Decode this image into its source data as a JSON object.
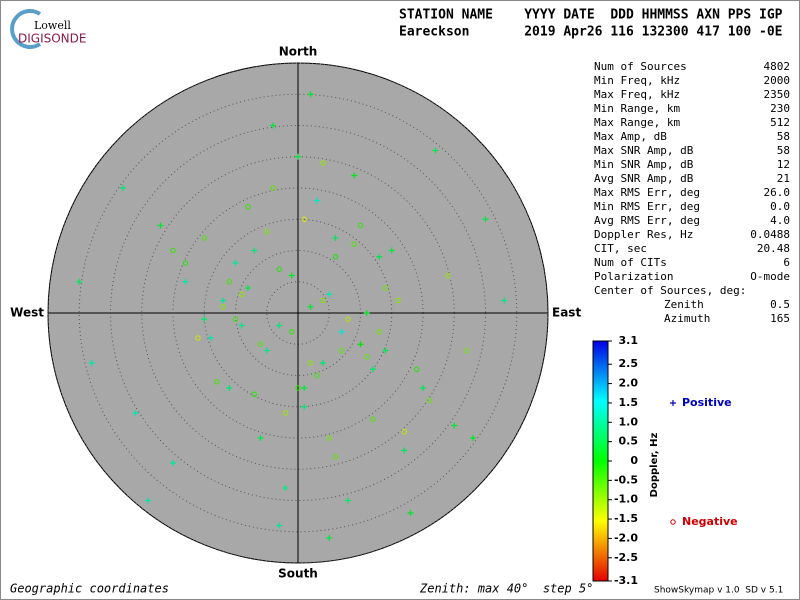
{
  "logo": {
    "top": "Lowell",
    "bottom": "DIGISONDE"
  },
  "header": {
    "line1": "STATION NAME    YYYY DATE  DDD HHMMSS AXN PPS IGP",
    "line2": "Eareckson       2019 Apr26 116 132300 417 100 -0E"
  },
  "stats": {
    "rows": [
      [
        "Num of Sources",
        "4802"
      ],
      [
        "Min Freq, kHz",
        "2000"
      ],
      [
        "Max Freq, kHz",
        "2350"
      ],
      [
        "Min Range, km",
        "230"
      ],
      [
        "Max Range, km",
        "512"
      ],
      [
        "Max Amp, dB",
        "58"
      ],
      [
        "Max SNR Amp, dB",
        "58"
      ],
      [
        "Min SNR Amp, dB",
        "12"
      ],
      [
        "Avg SNR Amp, dB",
        "21"
      ],
      [
        "Max RMS Err, deg",
        "26.0"
      ],
      [
        "Min RMS Err, deg",
        "0.0"
      ],
      [
        "Avg RMS Err, deg",
        "4.0"
      ],
      [
        "Doppler Res, Hz",
        "0.0488"
      ],
      [
        "CIT, sec",
        "20.48"
      ],
      [
        "Num of CITs",
        "6"
      ],
      [
        "Polarization",
        "O-mode"
      ]
    ],
    "center": {
      "title": "Center of Sources, deg:",
      "rows": [
        [
          "Zenith",
          "0.5"
        ],
        [
          "Azimuth",
          "165"
        ]
      ]
    }
  },
  "footer": {
    "left": "Geographic coordinates",
    "middle": "Zenith: max 40°  step 5°",
    "right": "ShowSkymap v 1.0  SD v 5.1"
  },
  "chart_data": {
    "type": "scatter",
    "directions": {
      "north": "North",
      "south": "South",
      "east": "East",
      "west": "West"
    },
    "xlim": [
      -40,
      40
    ],
    "ylim": [
      -40,
      40
    ],
    "rticks": [
      5,
      10,
      15,
      20,
      25,
      30,
      35,
      40
    ],
    "colorbar": {
      "label": "Doppler, Hz",
      "clim": [
        -3.1,
        3.1
      ],
      "ticks": [
        3.1,
        2.5,
        2,
        1.5,
        1,
        0.5,
        0,
        -0.5,
        -1,
        -1.5,
        -2,
        -2.5,
        -3.1
      ],
      "tick_labels": [
        "3.1",
        "2.5",
        "2.0",
        "1.5",
        "1.0",
        "0.5",
        "0",
        "-0.5",
        "-1.0",
        "-1.5",
        "-2.0",
        "-2.5",
        "-3.1"
      ]
    },
    "series": [
      {
        "name": "Positive",
        "color": "#0000c0",
        "marker": "plus",
        "x": [
          2,
          -3,
          5,
          -8,
          10,
          -12,
          4,
          -1,
          7,
          -5,
          15,
          -18,
          20,
          -22,
          1,
          3,
          -6,
          9,
          -10,
          12,
          0,
          -2,
          6,
          -14,
          25,
          -28,
          30,
          -33,
          8,
          -4,
          11,
          -9,
          17,
          -20,
          2,
          -7,
          22,
          -26,
          5,
          -15,
          -35,
          33,
          18,
          -24,
          13,
          -11,
          28,
          -3,
          1,
          14
        ],
        "y": [
          1,
          -2,
          3,
          4,
          -5,
          2,
          -8,
          6,
          -3,
          -6,
          10,
          5,
          -12,
          14,
          -15,
          18,
          -20,
          22,
          8,
          -9,
          25,
          -28,
          12,
          -4,
          -18,
          20,
          15,
          -8,
          -30,
          30,
          0,
          -2,
          -22,
          -24,
          35,
          10,
          26,
          -16,
          -36,
          -1,
          5,
          2,
          -32,
          -30,
          9,
          -12,
          -20,
          -34,
          -12,
          -6
        ],
        "values": [
          0.3,
          0.8,
          1.2,
          0.5,
          0,
          1.0,
          0.7,
          0.2,
          1.4,
          0.9,
          0.4,
          1.1,
          0.6,
          0.3,
          0.8,
          1.3,
          0.5,
          0.2,
          1.0,
          0.7,
          0.4,
          0.9,
          0.6,
          1.2,
          0.3,
          0.8,
          0.5,
          1.1,
          0.7,
          0.4,
          0.2,
          0.9,
          0.6,
          1.0,
          0.3,
          0.8,
          0.5,
          1.2,
          0.4,
          0.7,
          0.6,
          0.9,
          0.3,
          1.1,
          0.5,
          0.8,
          0.2,
          1.0,
          0.4,
          0.6
        ]
      },
      {
        "name": "Negative",
        "color": "#d00000",
        "marker": "circle",
        "x": [
          -1,
          4,
          -6,
          8,
          -3,
          11,
          -9,
          3,
          -12,
          6,
          14,
          -16,
          0,
          9,
          -5,
          19,
          -2,
          7,
          -13,
          16,
          -8,
          21,
          1,
          -18,
          12,
          5,
          -10,
          24,
          -4,
          10,
          2,
          -7,
          13,
          -15,
          17,
          -11,
          6,
          27,
          -20,
          4
        ],
        "y": [
          -3,
          2,
          -5,
          -1,
          7,
          -7,
          3,
          -10,
          1,
          9,
          4,
          -4,
          -12,
          11,
          13,
          -9,
          -16,
          -6,
          -11,
          2,
          17,
          -14,
          15,
          8,
          -17,
          -20,
          -1,
          6,
          20,
          14,
          -8,
          -13,
          -3,
          12,
          -19,
          5,
          -23,
          -6,
          10,
          24
        ],
        "values": [
          -0.3,
          -0.8,
          -0.5,
          -1.2,
          -0.2,
          -0.6,
          -1.0,
          -0.4,
          -0.9,
          -0.1,
          -0.7,
          -1.4,
          -0.3,
          -0.5,
          -0.8,
          -0.2,
          -1.1,
          -0.6,
          -0.4,
          -0.9,
          -0.3,
          -0.7,
          -1.5,
          -0.2,
          -0.5,
          -0.8,
          -0.4,
          -1.0,
          -0.6,
          -0.3,
          -0.9,
          -0.2,
          -0.7,
          -0.5,
          -1.3,
          -0.4,
          -0.6,
          -0.8,
          -0.3,
          -1.0
        ]
      }
    ]
  }
}
